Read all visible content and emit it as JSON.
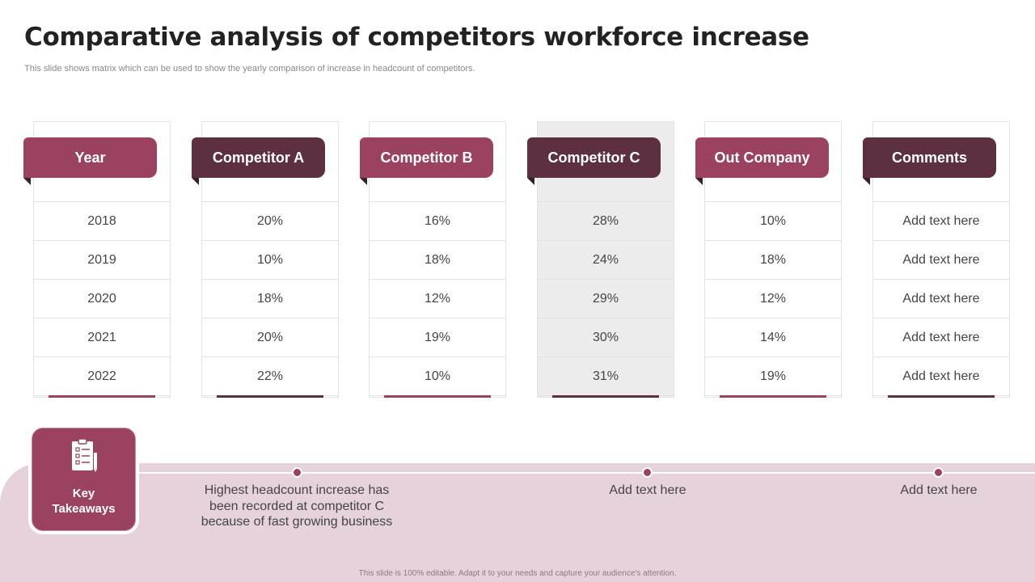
{
  "header": {
    "title": "Comparative analysis of competitors workforce increase",
    "subtitle": "This slide shows matrix which can be used to show the yearly comparison of increase in headcount of competitors."
  },
  "colors": {
    "light_tab": "#9a4260",
    "dark_tab": "#5c3040",
    "band": "#e6d2da",
    "highlight_column": "#ececec"
  },
  "table": {
    "columns": [
      {
        "label": "Year",
        "values": [
          "2018",
          "2019",
          "2020",
          "2021",
          "2022"
        ]
      },
      {
        "label": "Competitor A",
        "values": [
          "20%",
          "10%",
          "18%",
          "20%",
          "22%"
        ]
      },
      {
        "label": "Competitor B",
        "values": [
          "16%",
          "18%",
          "12%",
          "19%",
          "10%"
        ]
      },
      {
        "label": "Competitor C",
        "values": [
          "28%",
          "24%",
          "29%",
          "30%",
          "31%"
        ]
      },
      {
        "label": "Out Company",
        "values": [
          "10%",
          "18%",
          "12%",
          "14%",
          "19%"
        ]
      },
      {
        "label": "Comments",
        "values": [
          "Add text here",
          "Add text here",
          "Add text here",
          "Add text here",
          "Add text here"
        ]
      }
    ]
  },
  "takeaways": {
    "label_line1": "Key",
    "label_line2": "Takeaways",
    "icon": "clipboard-checklist-icon",
    "items": [
      {
        "line1": "Highest headcount increase has",
        "line2": "been recorded at competitor C",
        "line3": "because of fast growing business"
      },
      {
        "line1": "Add text here"
      },
      {
        "line1": "Add text here"
      }
    ]
  },
  "footer": {
    "text": "This slide is 100% editable. Adapt it to your needs and capture your audience's attention."
  }
}
